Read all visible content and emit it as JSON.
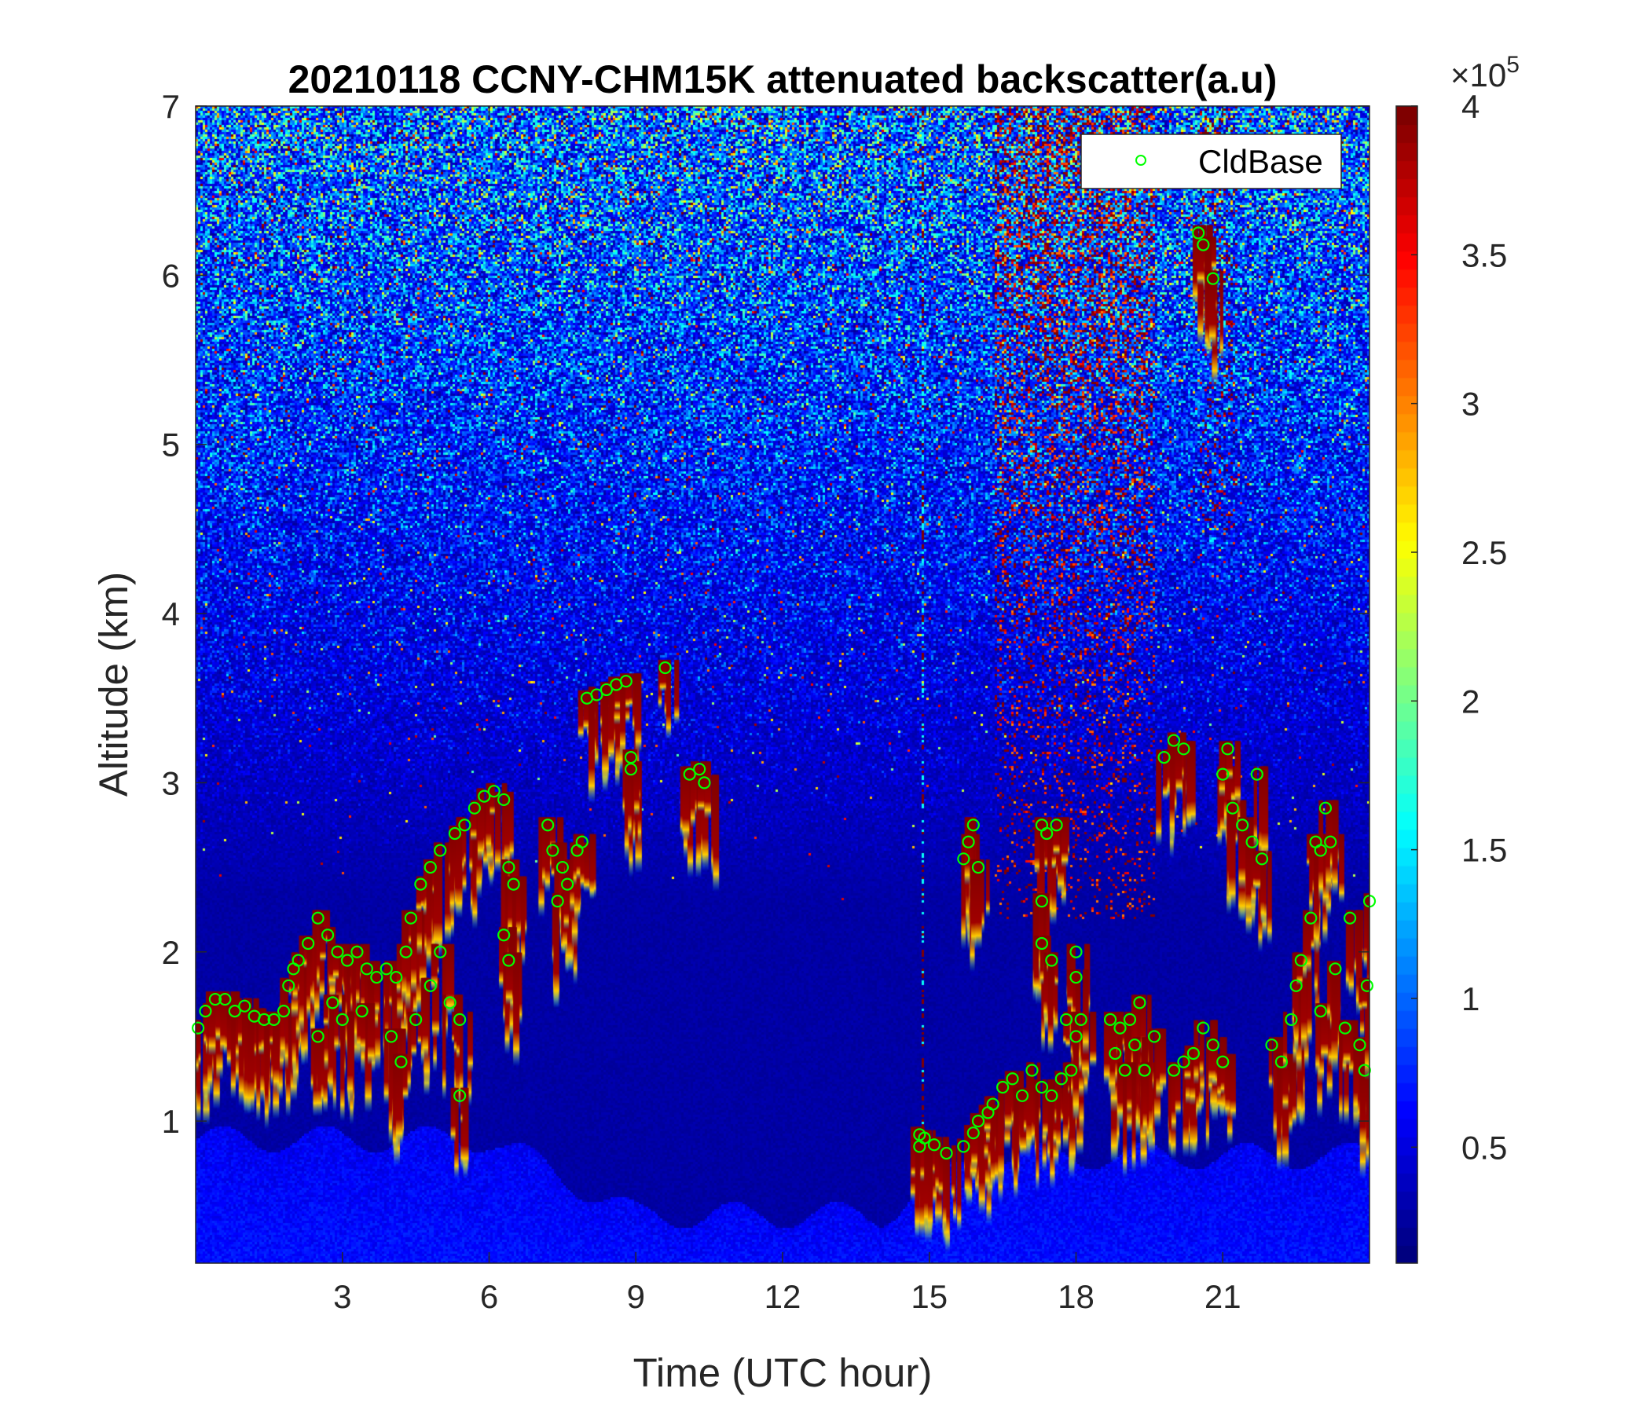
{
  "chart_data": {
    "type": "heatmap",
    "title": "20210118 CCNY-CHM15K attenuated backscatter(a.u)",
    "xlabel": "Time (UTC hour)",
    "ylabel": "Altitude (km)",
    "xlim": [
      0,
      24
    ],
    "ylim": [
      0.16,
      7
    ],
    "xticks": [
      3,
      6,
      9,
      12,
      15,
      18,
      21
    ],
    "yticks": [
      1,
      2,
      3,
      4,
      5,
      6,
      7
    ],
    "colormap": "jet",
    "colorbar": {
      "clim": [
        0.11,
        4
      ],
      "ticks": [
        0.5,
        1,
        1.5,
        2,
        2.5,
        3,
        3.5,
        4
      ],
      "tick_labels": [
        "0.5",
        "1",
        "1.5",
        "2",
        "2.5",
        "3",
        "3.5",
        "4"
      ],
      "multiplier_base": "×10",
      "multiplier_exp": "5"
    },
    "grid": false,
    "legend": {
      "placement": "top-right",
      "entries": [
        "CldBase"
      ]
    },
    "series": [
      {
        "name": "CldBase",
        "type": "scatter",
        "marker": "circle",
        "color": "#00ff00",
        "points": [
          [
            0.05,
            1.55
          ],
          [
            0.2,
            1.65
          ],
          [
            0.4,
            1.72
          ],
          [
            0.6,
            1.72
          ],
          [
            0.8,
            1.65
          ],
          [
            1.0,
            1.68
          ],
          [
            1.2,
            1.62
          ],
          [
            1.4,
            1.6
          ],
          [
            1.6,
            1.6
          ],
          [
            1.8,
            1.65
          ],
          [
            1.9,
            1.8
          ],
          [
            2.0,
            1.9
          ],
          [
            2.1,
            1.95
          ],
          [
            2.3,
            2.05
          ],
          [
            2.5,
            2.2
          ],
          [
            2.7,
            2.1
          ],
          [
            2.9,
            2.0
          ],
          [
            3.1,
            1.95
          ],
          [
            3.3,
            2.0
          ],
          [
            3.5,
            1.9
          ],
          [
            3.7,
            1.85
          ],
          [
            3.9,
            1.9
          ],
          [
            4.1,
            1.85
          ],
          [
            4.3,
            2.0
          ],
          [
            4.4,
            2.2
          ],
          [
            4.6,
            2.4
          ],
          [
            4.8,
            2.5
          ],
          [
            5.0,
            2.6
          ],
          [
            5.3,
            2.7
          ],
          [
            5.5,
            2.75
          ],
          [
            5.7,
            2.85
          ],
          [
            5.9,
            2.92
          ],
          [
            6.1,
            2.95
          ],
          [
            6.3,
            2.9
          ],
          [
            2.5,
            1.5
          ],
          [
            2.8,
            1.7
          ],
          [
            3.0,
            1.6
          ],
          [
            3.4,
            1.65
          ],
          [
            4.0,
            1.5
          ],
          [
            4.2,
            1.35
          ],
          [
            4.5,
            1.6
          ],
          [
            4.8,
            1.8
          ],
          [
            5.0,
            2.0
          ],
          [
            5.2,
            1.7
          ],
          [
            5.4,
            1.6
          ],
          [
            5.4,
            1.15
          ],
          [
            6.4,
            2.5
          ],
          [
            6.5,
            2.4
          ],
          [
            6.3,
            2.1
          ],
          [
            6.4,
            1.95
          ],
          [
            7.2,
            2.75
          ],
          [
            7.3,
            2.6
          ],
          [
            7.5,
            2.5
          ],
          [
            7.4,
            2.3
          ],
          [
            7.6,
            2.4
          ],
          [
            7.8,
            2.6
          ],
          [
            7.9,
            2.65
          ],
          [
            8.0,
            3.5
          ],
          [
            8.2,
            3.52
          ],
          [
            8.4,
            3.55
          ],
          [
            8.6,
            3.58
          ],
          [
            8.8,
            3.6
          ],
          [
            8.9,
            3.15
          ],
          [
            8.9,
            3.08
          ],
          [
            9.6,
            3.68
          ],
          [
            10.1,
            3.05
          ],
          [
            10.3,
            3.08
          ],
          [
            10.4,
            3.0
          ],
          [
            14.8,
            0.92
          ],
          [
            14.9,
            0.9
          ],
          [
            15.1,
            0.86
          ],
          [
            14.8,
            0.85
          ],
          [
            15.35,
            0.81
          ],
          [
            15.7,
            0.85
          ],
          [
            15.9,
            0.93
          ],
          [
            16.0,
            1.0
          ],
          [
            16.2,
            1.05
          ],
          [
            15.7,
            2.55
          ],
          [
            15.8,
            2.65
          ],
          [
            15.9,
            2.75
          ],
          [
            16.0,
            2.5
          ],
          [
            16.3,
            1.1
          ],
          [
            16.5,
            1.2
          ],
          [
            16.7,
            1.25
          ],
          [
            16.9,
            1.15
          ],
          [
            17.1,
            1.3
          ],
          [
            17.3,
            1.2
          ],
          [
            17.5,
            1.15
          ],
          [
            17.7,
            1.25
          ],
          [
            17.9,
            1.3
          ],
          [
            18.0,
            1.5
          ],
          [
            18.1,
            1.6
          ],
          [
            17.3,
            2.75
          ],
          [
            17.4,
            2.7
          ],
          [
            17.6,
            2.75
          ],
          [
            17.3,
            2.3
          ],
          [
            17.3,
            2.05
          ],
          [
            17.5,
            1.95
          ],
          [
            18.0,
            2.0
          ],
          [
            18.0,
            1.85
          ],
          [
            17.8,
            1.6
          ],
          [
            18.8,
            1.4
          ],
          [
            18.9,
            1.55
          ],
          [
            19.1,
            1.6
          ],
          [
            19.3,
            1.7
          ],
          [
            19.2,
            1.45
          ],
          [
            19.4,
            1.3
          ],
          [
            19.6,
            1.5
          ],
          [
            18.7,
            1.6
          ],
          [
            19.0,
            1.3
          ],
          [
            19.8,
            3.15
          ],
          [
            20.0,
            3.25
          ],
          [
            20.2,
            3.2
          ],
          [
            20.0,
            1.3
          ],
          [
            20.2,
            1.35
          ],
          [
            20.4,
            1.4
          ],
          [
            20.6,
            1.55
          ],
          [
            20.8,
            1.45
          ],
          [
            21.0,
            1.35
          ],
          [
            20.5,
            6.25
          ],
          [
            20.6,
            6.18
          ],
          [
            20.8,
            5.98
          ],
          [
            21.0,
            3.05
          ],
          [
            21.1,
            3.2
          ],
          [
            21.2,
            2.85
          ],
          [
            21.4,
            2.75
          ],
          [
            21.6,
            2.65
          ],
          [
            21.7,
            3.05
          ],
          [
            21.8,
            2.55
          ],
          [
            22.0,
            1.45
          ],
          [
            22.2,
            1.35
          ],
          [
            22.4,
            1.6
          ],
          [
            22.5,
            1.8
          ],
          [
            22.6,
            1.95
          ],
          [
            22.8,
            2.2
          ],
          [
            22.9,
            2.65
          ],
          [
            23.0,
            2.6
          ],
          [
            23.2,
            2.65
          ],
          [
            23.0,
            1.65
          ],
          [
            23.3,
            1.9
          ],
          [
            23.5,
            1.55
          ],
          [
            23.6,
            2.2
          ],
          [
            23.8,
            1.45
          ],
          [
            23.9,
            1.3
          ],
          [
            24.0,
            2.3
          ],
          [
            23.95,
            1.8
          ],
          [
            23.1,
            2.85
          ]
        ]
      }
    ]
  }
}
